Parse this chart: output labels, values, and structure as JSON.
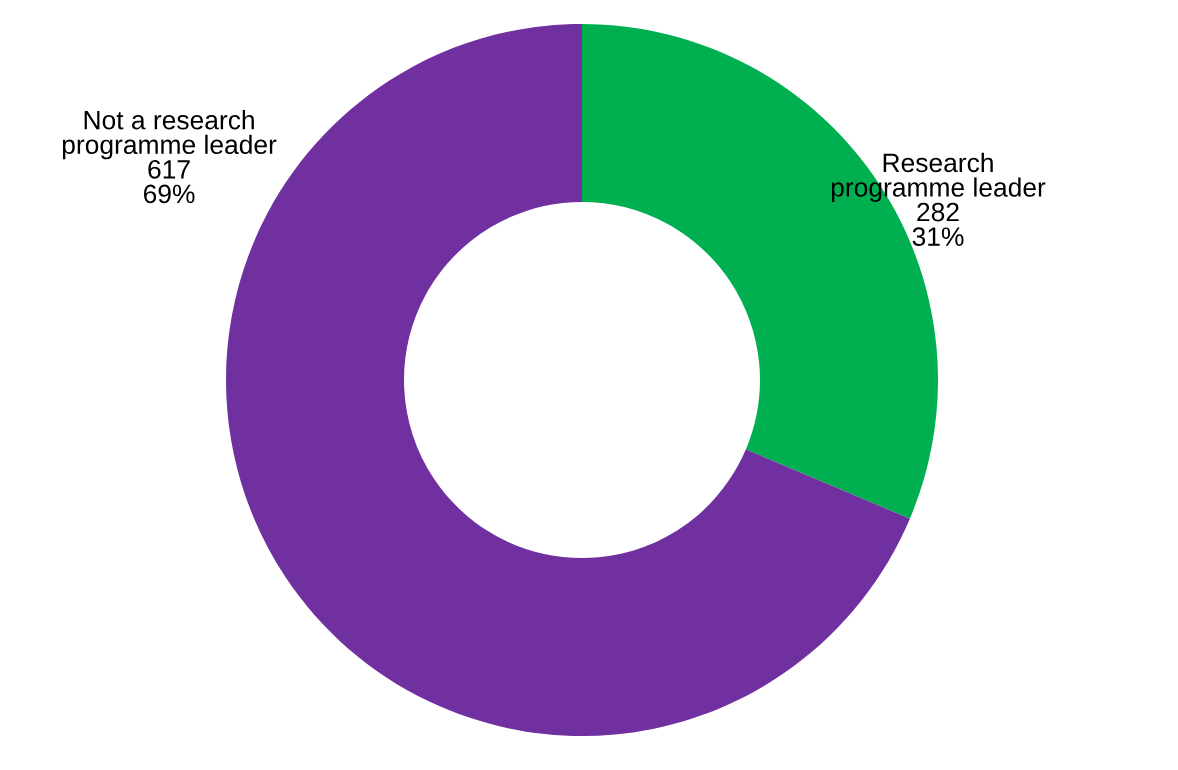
{
  "chart_data": {
    "type": "donut",
    "categories": [
      "Research\nprogramme leader",
      "Not a research\nprogramme leader"
    ],
    "values": [
      282,
      617
    ],
    "colors": [
      "#00b050",
      "#7030a0"
    ],
    "value_labels": [
      "282\n31%",
      "617\n69%"
    ]
  }
}
